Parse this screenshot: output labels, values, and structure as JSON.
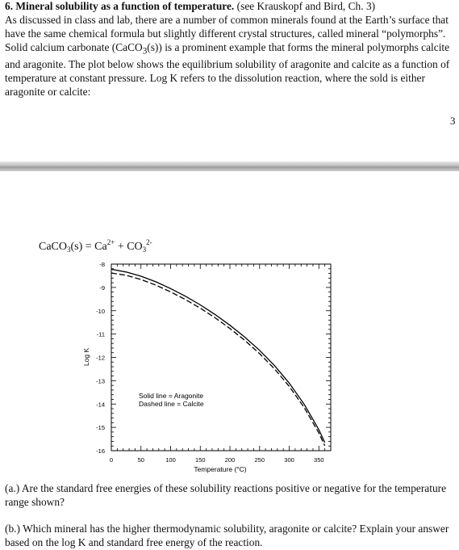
{
  "problem": {
    "heading": "6. Mineral solubility as a function of temperature.",
    "citation": "(see Krauskopf and Bird, Ch. 3)",
    "body_1": "As discussed in class and lab, there are a number of common minerals found at the Earth’s surface that have the same chemical formula but slightly different crystal structures, called mineral “polymorphs”.  Solid calcium carbonate (CaCO",
    "sub_3": "3",
    "body_2": "(s)) is a prominent example that forms the mineral polymorphs calcite and aragonite.  The plot below shows the equilibrium solubility of aragonite and calcite as a function of temperature at constant pressure.  Log K refers to the dissolution reaction, where the sold is either aragonite or calcite:"
  },
  "page_number": "3",
  "reaction": {
    "lhs": "CaCO",
    "lhs_sub": "3",
    "lhs_tail": "(s) = Ca",
    "ca_charge": "2+",
    "plus": " + CO",
    "co_sub": "3",
    "co_charge": "2-"
  },
  "chart_data": {
    "type": "line",
    "xlabel": "Temperature (°C)",
    "ylabel": "Log K",
    "xlim": [
      0,
      370
    ],
    "ylim": [
      -16,
      -8
    ],
    "xticks": [
      "0",
      "50",
      "100",
      "150",
      "200",
      "250",
      "300",
      "350"
    ],
    "yticks": [
      "-8",
      "-9",
      "-10",
      "-11",
      "-12",
      "-13",
      "-14",
      "-15",
      "-16"
    ],
    "legend_lines": [
      "Solid line = Aragonite",
      "Dashed line = Calcite"
    ],
    "series": [
      {
        "name": "Aragonite",
        "style": "solid",
        "x": [
          0,
          25,
          50,
          75,
          100,
          125,
          150,
          175,
          200,
          225,
          250,
          275,
          300,
          325,
          350,
          360
        ],
        "y": [
          -8.22,
          -8.34,
          -8.52,
          -8.76,
          -9.05,
          -9.38,
          -9.75,
          -10.16,
          -10.62,
          -11.13,
          -11.7,
          -12.35,
          -13.1,
          -14.0,
          -15.1,
          -15.65
        ]
      },
      {
        "name": "Calcite",
        "style": "dashed",
        "x": [
          0,
          25,
          50,
          75,
          100,
          125,
          150,
          175,
          200,
          225,
          250,
          275,
          300,
          325,
          350,
          360
        ],
        "y": [
          -8.38,
          -8.48,
          -8.66,
          -8.9,
          -9.19,
          -9.52,
          -9.89,
          -10.3,
          -10.76,
          -11.27,
          -11.84,
          -12.49,
          -13.24,
          -14.14,
          -15.24,
          -15.79
        ]
      }
    ]
  },
  "questions": {
    "a": "(a.) Are the standard free energies of these solubility reactions positive or negative for the temperature range shown?",
    "b": "(b.) Which mineral has the higher thermodynamic solubility, aragonite or calcite? Explain your answer based on the log K and standard free energy of the reaction."
  }
}
